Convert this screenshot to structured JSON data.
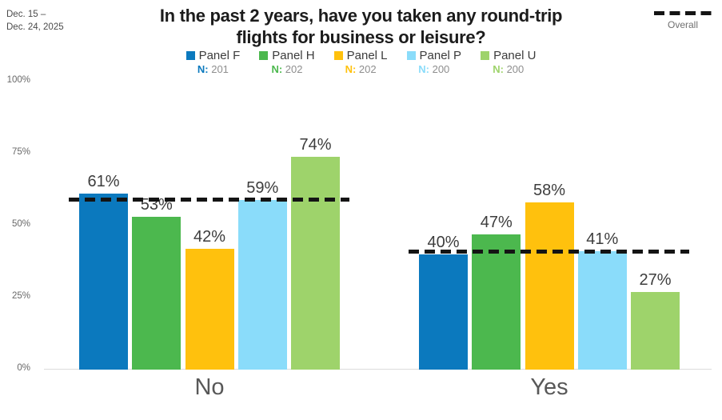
{
  "header": {
    "date_line1": "Dec. 15 –",
    "date_line2": "Dec. 24, 2025",
    "title_line1": "In the past 2 years, have you taken any round-trip",
    "title_line2": "flights for business or leisure?"
  },
  "chart_data": {
    "type": "bar",
    "title": "In the past 2 years, have you taken any round-trip flights for business or leisure?",
    "categories": [
      "No",
      "Yes"
    ],
    "series": [
      {
        "name": "Panel F",
        "n_label": "N:",
        "n": "201",
        "color": "#0B79BE",
        "values": [
          61,
          40
        ]
      },
      {
        "name": "Panel H",
        "n_label": "N:",
        "n": "202",
        "color": "#4CB84E",
        "values": [
          53,
          47
        ]
      },
      {
        "name": "Panel L",
        "n_label": "N:",
        "n": "202",
        "color": "#FFC10D",
        "values": [
          42,
          58
        ]
      },
      {
        "name": "Panel P",
        "n_label": "N:",
        "n": "200",
        "color": "#8ADCFA",
        "values": [
          59,
          41
        ]
      },
      {
        "name": "Panel U",
        "n_label": "N:",
        "n": "200",
        "color": "#9ED36B",
        "values": [
          74,
          27
        ]
      }
    ],
    "overall_line": {
      "label": "Overall",
      "values": [
        59,
        41
      ],
      "color": "#141414"
    },
    "value_suffix": "%",
    "xlabel": "",
    "ylabel": "",
    "ylim": [
      0,
      100
    ],
    "yticks": [
      {
        "value": 0,
        "label": "0%"
      },
      {
        "value": 25,
        "label": "25%"
      },
      {
        "value": 50,
        "label": "50%"
      },
      {
        "value": 75,
        "label": "75%"
      },
      {
        "value": 100,
        "label": "100%"
      }
    ],
    "grid": false,
    "legend_position": "top"
  }
}
